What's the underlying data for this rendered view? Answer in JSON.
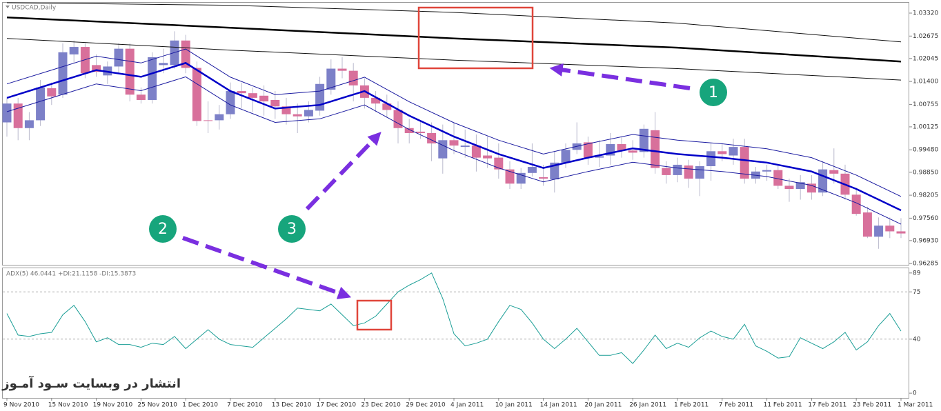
{
  "chart_data": [
    {
      "type": "candlestick",
      "title": "USDCAD,Daily",
      "categories": [
        "9 Nov 2010",
        null,
        null,
        null,
        "15 Nov 2010",
        null,
        null,
        null,
        "19 Nov 2010",
        null,
        null,
        null,
        "25 Nov 2010",
        null,
        null,
        null,
        "1 Dec 2010",
        null,
        null,
        null,
        "7 Dec 2010",
        null,
        null,
        null,
        "13 Dec 2010",
        null,
        null,
        null,
        "17 Dec 2010",
        null,
        null,
        null,
        "23 Dec 2010",
        null,
        null,
        null,
        "29 Dec 2010",
        null,
        null,
        null,
        "4 Jan 2011",
        null,
        null,
        null,
        "10 Jan 2011",
        null,
        null,
        null,
        "14 Jan 2011",
        null,
        null,
        null,
        "20 Jan 2011",
        null,
        null,
        null,
        "26 Jan 2011",
        null,
        null,
        null,
        "1 Feb 2011",
        null,
        null,
        null,
        "7 Feb 2011",
        null,
        null,
        null,
        "11 Feb 2011",
        null,
        null,
        null,
        "17 Feb 2011",
        null,
        null,
        null,
        "23 Feb 2011",
        null,
        null,
        null,
        "1 Mar 2011"
      ],
      "open": [
        1.0025,
        1.0078,
        1.0009,
        1.0031,
        1.0121,
        1.0103,
        1.0216,
        1.0237,
        1.0186,
        1.0157,
        1.0182,
        1.0232,
        1.0103,
        1.0088,
        1.0186,
        1.0186,
        1.0255,
        1.0178,
        1.0031,
        1.0031,
        1.0048,
        1.0113,
        1.0107,
        1.01,
        1.0088,
        1.007,
        1.0048,
        1.0042,
        1.0058,
        1.0117,
        1.0176,
        1.017,
        1.0129,
        1.0094,
        1.0078,
        1.006,
        1.0009,
        0.9999,
        0.9995,
        0.9924,
        0.9975,
        0.9956,
        0.996,
        0.9932,
        0.9926,
        0.9893,
        0.9853,
        0.9883,
        0.9871,
        0.9865,
        0.9912,
        0.9948,
        0.9969,
        0.9926,
        0.9932,
        0.9964,
        0.9946,
        0.9942,
        1.0003,
        0.9897,
        0.9877,
        0.9904,
        0.9867,
        0.9902,
        0.9944,
        0.9932,
        0.9956,
        0.9867,
        0.9887,
        0.9891,
        0.9847,
        0.9838,
        0.9853,
        0.9828,
        0.9891,
        0.9881,
        0.9822,
        0.9772,
        0.9704,
        0.9735,
        0.9719
      ],
      "high": [
        1.0094,
        1.0094,
        1.0054,
        1.0144,
        1.0137,
        1.0247,
        1.0255,
        1.0247,
        1.0216,
        1.0196,
        1.0247,
        1.0247,
        1.0123,
        1.0222,
        1.0232,
        1.0281,
        1.0271,
        1.0196,
        1.0084,
        1.0074,
        1.0137,
        1.0137,
        1.0123,
        1.0129,
        1.0113,
        1.0094,
        1.0078,
        1.0084,
        1.0153,
        1.0202,
        1.0208,
        1.0192,
        1.0149,
        1.0113,
        1.0103,
        1.0084,
        1.0035,
        1.0031,
        1.0025,
        1.0019,
        1.0025,
        1.0005,
        0.9991,
        0.9985,
        0.9966,
        0.9916,
        0.9897,
        0.9966,
        0.9906,
        0.9944,
        0.9966,
        1.0025,
        0.9985,
        0.9975,
        0.9995,
        0.9985,
        0.9975,
        1.0019,
        1.0054,
        0.9916,
        0.9926,
        0.992,
        0.9916,
        0.9966,
        0.9966,
        0.9979,
        0.9979,
        0.99,
        0.9906,
        0.9906,
        0.9867,
        0.9877,
        0.9877,
        0.9916,
        0.9952,
        0.9906,
        0.9841,
        0.9788,
        0.9758,
        0.9758,
        0.9756
      ],
      "low": [
        0.9985,
        0.9975,
        0.9975,
        1.0015,
        1.0074,
        1.0094,
        1.0192,
        1.0149,
        1.0153,
        1.0133,
        1.0163,
        1.0084,
        1.0078,
        1.0078,
        1.0163,
        1.0176,
        1.0163,
        1.0015,
        0.9995,
        1.0005,
        1.0035,
        1.0064,
        1.0054,
        1.0044,
        1.0035,
        1.0019,
        0.9995,
        1.0025,
        1.0044,
        1.0103,
        1.0149,
        1.0084,
        1.0064,
        1.0054,
        1.0038,
        0.9966,
        0.9966,
        0.9979,
        0.9916,
        0.9881,
        0.9936,
        0.9926,
        0.9887,
        0.9897,
        0.9867,
        0.9838,
        0.9838,
        0.9873,
        0.9847,
        0.9828,
        0.9897,
        0.9936,
        0.9906,
        0.99,
        0.9906,
        0.9926,
        0.992,
        0.9926,
        0.9881,
        0.9853,
        0.9857,
        0.9841,
        0.9818,
        0.9861,
        0.9916,
        0.9906,
        0.9853,
        0.9853,
        0.9861,
        0.9838,
        0.9802,
        0.9808,
        0.9808,
        0.9818,
        0.9853,
        0.9808,
        0.9763,
        0.97,
        0.967,
        0.97,
        0.97
      ],
      "close": [
        1.0078,
        1.0009,
        1.0031,
        1.0123,
        1.0098,
        1.0222,
        1.0237,
        1.0163,
        1.0167,
        1.0182,
        1.0232,
        1.0103,
        1.0088,
        1.0208,
        1.0192,
        1.0255,
        1.0178,
        1.0029,
        1.0029,
        1.0048,
        1.0113,
        1.0107,
        1.0094,
        1.0084,
        1.007,
        1.0048,
        1.0042,
        1.006,
        1.0133,
        1.0176,
        1.017,
        1.0129,
        1.0094,
        1.0078,
        1.006,
        1.0009,
        0.9995,
        0.9995,
        0.9966,
        0.9975,
        0.996,
        0.996,
        0.9926,
        0.9924,
        0.9893,
        0.9853,
        0.9883,
        0.99,
        0.9867,
        0.9912,
        0.9948,
        0.9966,
        0.9926,
        0.993,
        0.9964,
        0.9946,
        0.994,
        1.0007,
        0.9897,
        0.9877,
        0.9906,
        0.9867,
        0.9902,
        0.9944,
        0.9936,
        0.9956,
        0.9867,
        0.9887,
        0.9891,
        0.9847,
        0.9838,
        0.9857,
        0.9828,
        0.9893,
        0.9881,
        0.9822,
        0.9768,
        0.9704,
        0.9735,
        0.9719,
        0.9713
      ],
      "up_color": "#7c80c8",
      "down_color": "#d8709b",
      "wick_color": "#b9b9cc",
      "lines_x": [
        0,
        4,
        8,
        12,
        16,
        20,
        24,
        28,
        32,
        36,
        40,
        44,
        48,
        52,
        56,
        60,
        64,
        68,
        72,
        76,
        80
      ],
      "lines": [
        {
          "color": "#111111",
          "width": 1,
          "values": [
            1.0361,
            null,
            null,
            null,
            null,
            1.0354,
            null,
            null,
            null,
            null,
            1.0334,
            null,
            null,
            null,
            null,
            1.0304,
            null,
            null,
            null,
            null,
            1.0251
          ]
        },
        {
          "color": "#000000",
          "width": 2.5,
          "values": [
            1.032,
            null,
            null,
            null,
            null,
            1.0291,
            null,
            null,
            null,
            null,
            1.0261,
            null,
            null,
            null,
            null,
            1.0235,
            null,
            null,
            null,
            null,
            1.0196
          ]
        },
        {
          "color": "#111111",
          "width": 1,
          "values": [
            1.0261,
            null,
            null,
            null,
            null,
            1.0228,
            null,
            null,
            null,
            null,
            1.02,
            null,
            null,
            null,
            null,
            1.0176,
            null,
            null,
            null,
            null,
            1.0144
          ]
        },
        {
          "color": "#1a1aa0",
          "width": 1,
          "values": [
            1.0133,
            1.0172,
            1.0211,
            1.0192,
            1.0231,
            1.0152,
            1.0103,
            1.0113,
            1.0152,
            1.0083,
            1.0024,
            0.9975,
            0.9936,
            0.9965,
            0.9991,
            0.9975,
            0.9965,
            0.9951,
            0.9926,
            0.9877,
            0.9817
          ]
        },
        {
          "color": "#0000c8",
          "width": 2.5,
          "values": [
            1.0094,
            1.0133,
            1.0172,
            1.0153,
            1.0192,
            1.0113,
            1.0064,
            1.0074,
            1.0113,
            1.0044,
            0.9985,
            0.9936,
            0.9897,
            0.9926,
            0.9952,
            0.9936,
            0.9926,
            0.9912,
            0.9887,
            0.9838,
            0.9778
          ]
        },
        {
          "color": "#1a1aa0",
          "width": 1,
          "values": [
            1.0055,
            1.0094,
            1.0133,
            1.0114,
            1.0153,
            1.0074,
            1.0025,
            1.0035,
            1.0074,
            1.0005,
            0.9946,
            0.9897,
            0.9858,
            0.9887,
            0.9913,
            0.9897,
            0.9887,
            0.9873,
            0.9848,
            0.9799,
            0.9739
          ]
        }
      ],
      "ylim": [
        0.9625,
        1.0363
      ],
      "yticks": [
        {
          "value": 1.0332,
          "label": "1.03320"
        },
        1.02675,
        1.02045,
        {
          "value": 1.014,
          "label": "1.01400"
        },
        1.00755,
        1.00125,
        {
          "value": 0.9948,
          "label": "0.99480"
        },
        {
          "value": 0.9885,
          "label": "0.98850"
        },
        0.98205,
        {
          "value": 0.9756,
          "label": "0.97560"
        },
        {
          "value": 0.9693,
          "label": "0.96930"
        },
        0.96285
      ]
    },
    {
      "type": "line",
      "title": "ADX(5) 46.0441 +DI:21.1158 -DI:15.3873",
      "values": [
        59,
        43,
        42,
        44,
        45,
        58,
        65,
        53,
        38,
        41,
        36,
        36,
        34,
        37,
        36,
        42,
        33,
        40,
        47,
        40,
        36,
        35,
        34,
        41,
        48,
        55,
        63,
        62,
        61,
        66,
        58,
        50,
        52,
        57,
        66,
        75,
        80,
        84,
        89,
        70,
        44,
        35,
        37,
        40,
        53,
        65,
        62,
        52,
        40,
        33,
        40,
        48,
        38,
        28,
        28,
        30,
        22,
        32,
        43,
        33,
        37,
        34,
        41,
        46,
        42,
        40,
        51,
        35,
        31,
        26,
        27,
        41,
        37,
        33,
        38,
        45,
        32,
        38,
        50,
        59,
        46
      ],
      "color": "#1a9e96",
      "ylim": [
        -3.5,
        93
      ],
      "yticks": [
        89,
        75,
        40,
        0
      ],
      "levels": [
        75,
        40
      ]
    }
  ],
  "annotations": {
    "markers": [
      "1",
      "2",
      "3"
    ],
    "watermark": "انتشار در وبسایت سـود آمـوز"
  }
}
